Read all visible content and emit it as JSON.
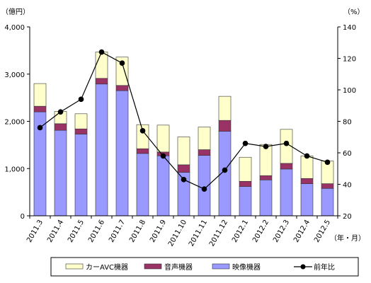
{
  "chart_data": {
    "type": "bar",
    "stacked": true,
    "categories": [
      "2011.3",
      "2011.4",
      "2011.5",
      "2011.6",
      "2011.7",
      "2011.8",
      "2011.9",
      "2011.10",
      "2011.11",
      "2011.12",
      "2012.1",
      "2012.2",
      "2012.3",
      "2012.4",
      "2012.5"
    ],
    "series": [
      {
        "name": "映像機器",
        "axis": "left",
        "color": "#9999ff",
        "values": [
          2200,
          1810,
          1730,
          2790,
          2650,
          1320,
          1270,
          920,
          1280,
          1790,
          620,
          760,
          990,
          680,
          580
        ]
      },
      {
        "name": "音声機器",
        "axis": "left",
        "color": "#993366",
        "values": [
          120,
          140,
          110,
          120,
          110,
          100,
          80,
          160,
          120,
          230,
          110,
          90,
          120,
          110,
          100
        ]
      },
      {
        "name": "カーAVC機器",
        "axis": "left",
        "color": "#ffffcc",
        "values": [
          480,
          260,
          320,
          560,
          600,
          510,
          570,
          590,
          480,
          510,
          510,
          660,
          720,
          480,
          480
        ]
      },
      {
        "name": "前年比",
        "axis": "right",
        "type": "line",
        "color": "#000000",
        "values": [
          76,
          86,
          94,
          124,
          117,
          74,
          58,
          43,
          37,
          49,
          66,
          64,
          66,
          58,
          54
        ]
      }
    ],
    "y_left": {
      "unit_label": "（億円）",
      "ylim": [
        0,
        4000
      ],
      "ticks": [
        "0",
        "1,000",
        "2,000",
        "3,000",
        "4,000"
      ]
    },
    "y_right": {
      "unit_label": "（%）",
      "ylim": [
        20,
        140
      ],
      "ticks": [
        "20",
        "40",
        "60",
        "80",
        "100",
        "120",
        "140"
      ]
    },
    "x_unit_label": "（年・月）",
    "legend": {
      "position": "bottom",
      "items": [
        {
          "label": "カーAVC機器",
          "kind": "bar",
          "color": "#ffffcc"
        },
        {
          "label": "音声機器",
          "kind": "bar",
          "color": "#993366"
        },
        {
          "label": "映像機器",
          "kind": "bar",
          "color": "#9999ff"
        },
        {
          "label": "前年比",
          "kind": "line-marker",
          "color": "#000000"
        }
      ]
    },
    "grid": false
  }
}
